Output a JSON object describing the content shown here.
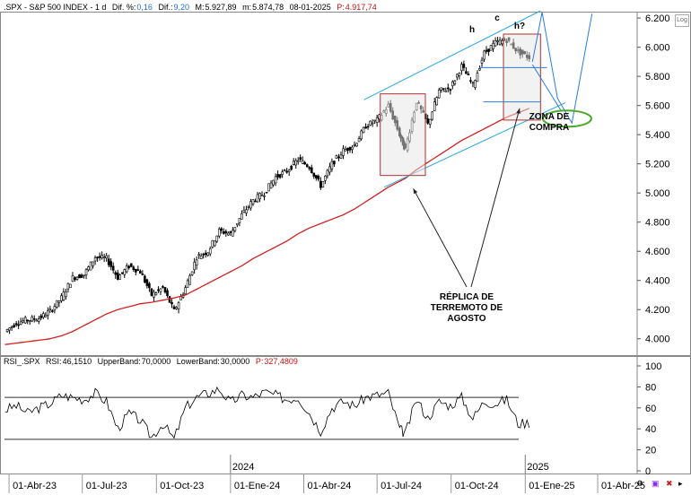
{
  "header": {
    "symbol": ".SPX - S&P 500 INDEX - 1 d",
    "dif_pct_label": "Dif. %:",
    "dif_pct_value": "0,16",
    "dif_label": "Dif.:",
    "dif_value": "9,20",
    "m_label": "M:",
    "m_value": "5.927,89",
    "m2_label": "m:",
    "m2_value": "5.874,78",
    "date": "08-01-2025",
    "p_label": "P:",
    "p_value": "4.917,74"
  },
  "rsi_header": {
    "name": "RSI_.SPX",
    "rsi_label": "RSI:",
    "rsi_value": "46,1510",
    "upper_label": "UpperBand:",
    "upper_value": "70,0000",
    "lower_label": "LowerBand:",
    "lower_value": "30,0000",
    "p_label": "P:",
    "p_value": "327,4809"
  },
  "log_button": "Log",
  "annotations": {
    "replica": "RÉPLICA DE TERREMOTO DE AGOSTO",
    "zona": "ZONA DE COMPRA",
    "h1": "h",
    "c": "c",
    "h2": "h?"
  },
  "colors": {
    "candles": "#000000",
    "ma": "#d42020",
    "channel": "#29a8e0",
    "projection": "#2a7de1",
    "zone": "#4aaa2a",
    "rsi_line": "#000000",
    "rsi_high": "#1e6fd0",
    "rsi_low": "#d01010"
  },
  "chart_data": [
    {
      "type": "line",
      "name": "price",
      "y_ticks": [
        "6.200",
        "6.000",
        "5.800",
        "5.600",
        "5.400",
        "5.200",
        "5.000",
        "4.800",
        "4.600",
        "4.400",
        "4.200",
        "4.000"
      ],
      "y_tick_values": [
        6200,
        6000,
        5800,
        5600,
        5400,
        5200,
        5000,
        4800,
        4600,
        4400,
        4200,
        4000
      ],
      "ylim": [
        3900,
        6250
      ],
      "x_labels": [
        "01-Abr-23",
        "01-Jul-23",
        "01-Oct-23",
        "01-Ene-24",
        "01-Abr-24",
        "01-Jul-24",
        "01-Oct-24",
        "01-Ene-25",
        "01-Abr-25"
      ],
      "year_labels": [
        "2024",
        "2025"
      ],
      "x": [
        "2023-03-27",
        "2023-04-10",
        "2023-04-24",
        "2023-05-08",
        "2023-05-22",
        "2023-06-05",
        "2023-06-19",
        "2023-07-03",
        "2023-07-17",
        "2023-07-31",
        "2023-08-14",
        "2023-08-28",
        "2023-09-11",
        "2023-09-25",
        "2023-10-09",
        "2023-10-23",
        "2023-11-06",
        "2023-11-20",
        "2023-12-04",
        "2023-12-18",
        "2024-01-01",
        "2024-01-15",
        "2024-01-29",
        "2024-02-12",
        "2024-02-26",
        "2024-03-11",
        "2024-03-25",
        "2024-04-08",
        "2024-04-22",
        "2024-05-06",
        "2024-05-20",
        "2024-06-03",
        "2024-06-17",
        "2024-07-01",
        "2024-07-15",
        "2024-07-29",
        "2024-08-05",
        "2024-08-19",
        "2024-09-02",
        "2024-09-16",
        "2024-09-30",
        "2024-10-14",
        "2024-10-28",
        "2024-11-11",
        "2024-11-25",
        "2024-12-09",
        "2024-12-23",
        "2025-01-06"
      ],
      "close": [
        4050,
        4110,
        4130,
        4140,
        4190,
        4280,
        4420,
        4440,
        4560,
        4550,
        4420,
        4500,
        4460,
        4300,
        4350,
        4190,
        4350,
        4560,
        4600,
        4740,
        4720,
        4850,
        4950,
        5000,
        5110,
        5150,
        5230,
        5180,
        5050,
        5200,
        5290,
        5330,
        5460,
        5500,
        5600,
        5400,
        5300,
        5630,
        5470,
        5700,
        5720,
        5870,
        5740,
        5960,
        6030,
        6050,
        5970,
        5930
      ],
      "ma": [
        3960,
        3970,
        3980,
        3990,
        4000,
        4020,
        4050,
        4090,
        4130,
        4170,
        4200,
        4220,
        4240,
        4250,
        4265,
        4280,
        4300,
        4340,
        4380,
        4420,
        4460,
        4500,
        4550,
        4590,
        4630,
        4670,
        4720,
        4760,
        4790,
        4820,
        4850,
        4890,
        4940,
        4990,
        5040,
        5080,
        5100,
        5160,
        5210,
        5260,
        5310,
        5360,
        5400,
        5440,
        5480,
        5520,
        5550,
        5580
      ]
    },
    {
      "type": "line",
      "name": "RSI",
      "y_ticks": [
        "100",
        "80",
        "60",
        "40",
        "20",
        "0"
      ],
      "y_tick_values": [
        100,
        80,
        60,
        40,
        20,
        0
      ],
      "ylim": [
        0,
        100
      ],
      "upper_band": 70,
      "lower_band": 30,
      "x": [
        "2023-03-27",
        "2023-04-10",
        "2023-04-24",
        "2023-05-08",
        "2023-05-22",
        "2023-06-05",
        "2023-06-19",
        "2023-07-03",
        "2023-07-17",
        "2023-07-31",
        "2023-08-14",
        "2023-08-28",
        "2023-09-11",
        "2023-09-25",
        "2023-10-09",
        "2023-10-23",
        "2023-11-06",
        "2023-11-20",
        "2023-12-04",
        "2023-12-18",
        "2024-01-01",
        "2024-01-15",
        "2024-01-29",
        "2024-02-12",
        "2024-02-26",
        "2024-03-11",
        "2024-03-25",
        "2024-04-08",
        "2024-04-22",
        "2024-05-06",
        "2024-05-20",
        "2024-06-03",
        "2024-06-17",
        "2024-07-01",
        "2024-07-15",
        "2024-07-29",
        "2024-08-05",
        "2024-08-19",
        "2024-09-02",
        "2024-09-16",
        "2024-09-30",
        "2024-10-14",
        "2024-10-28",
        "2024-11-11",
        "2024-11-25",
        "2024-12-09",
        "2024-12-23",
        "2025-01-06"
      ],
      "values": [
        58,
        62,
        55,
        60,
        64,
        72,
        70,
        68,
        74,
        66,
        40,
        55,
        48,
        32,
        45,
        30,
        60,
        70,
        74,
        78,
        65,
        72,
        70,
        75,
        72,
        68,
        70,
        55,
        38,
        60,
        66,
        62,
        70,
        72,
        74,
        40,
        35,
        68,
        50,
        66,
        62,
        70,
        50,
        66,
        64,
        68,
        45,
        46
      ]
    }
  ]
}
